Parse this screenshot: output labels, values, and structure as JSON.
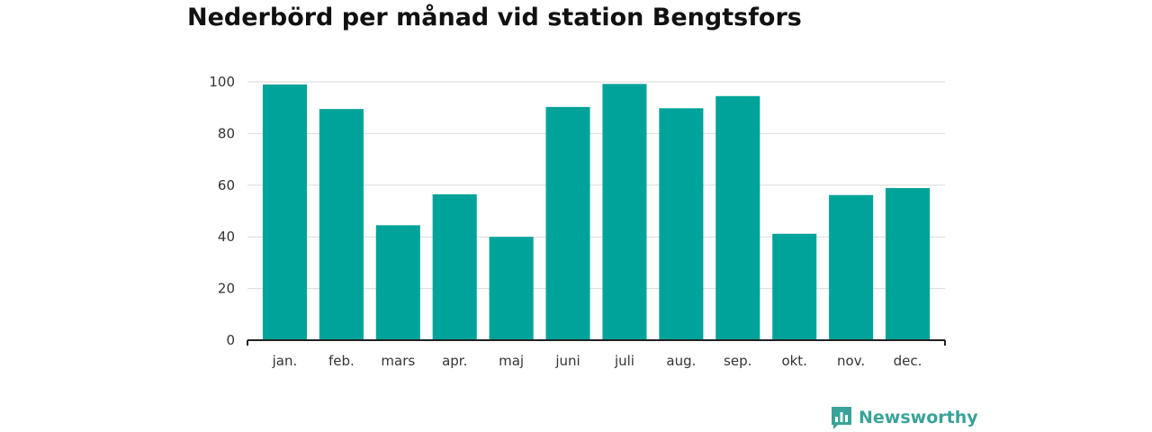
{
  "chart_data": {
    "type": "bar",
    "title": "Nederbörd per månad vid station Bengtsfors",
    "xlabel": "",
    "ylabel": "",
    "categories": [
      "jan.",
      "feb.",
      "mars",
      "apr.",
      "maj",
      "juni",
      "juli",
      "aug.",
      "sep.",
      "okt.",
      "nov.",
      "dec."
    ],
    "values": [
      99,
      89.5,
      44.5,
      56.5,
      40,
      90.3,
      99.2,
      89.8,
      94.5,
      41.2,
      56.2,
      58.9
    ],
    "ylim": [
      0,
      100
    ],
    "yticks": [
      "0",
      "20",
      "40",
      "60",
      "80",
      "100"
    ],
    "grid": true,
    "bar_color": "#00a39a"
  },
  "brand": {
    "name": "Newsworthy",
    "icon": "newsworthy-logo-icon",
    "color": "#3aa39a"
  }
}
